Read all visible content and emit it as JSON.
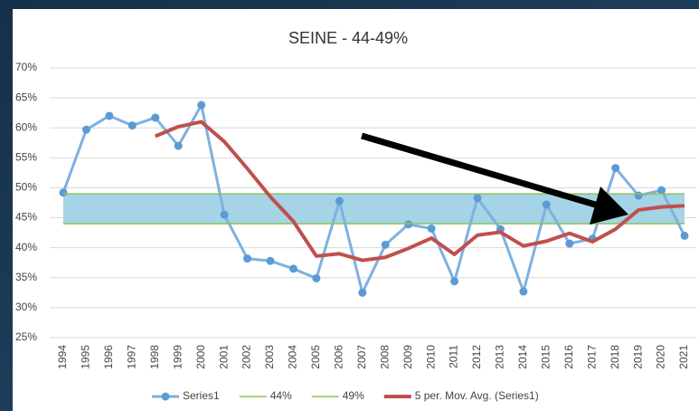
{
  "chart_data": {
    "type": "line",
    "title": "SEINE - 44-49%",
    "categories": [
      "1994",
      "1995",
      "1996",
      "1997",
      "1998",
      "1999",
      "2000",
      "2001",
      "2002",
      "2003",
      "2004",
      "2005",
      "2006",
      "2007",
      "2008",
      "2009",
      "2010",
      "2011",
      "2012",
      "2013",
      "2014",
      "2015",
      "2016",
      "2017",
      "2018",
      "2019",
      "2020",
      "2021"
    ],
    "series": [
      {
        "name": "Series1",
        "color": "#7fb0e0",
        "markers": true,
        "values": [
          49.2,
          59.7,
          62,
          60.4,
          61.7,
          57,
          63.8,
          45.5,
          38.2,
          37.8,
          36.5,
          34.9,
          47.8,
          32.5,
          40.5,
          43.9,
          43.2,
          34.4,
          48.3,
          43.1,
          32.7,
          47.2,
          40.7,
          41.5,
          53.3,
          48.7,
          49.6,
          42
        ]
      },
      {
        "name": "44%",
        "color": "#92c15a",
        "values": [
          44,
          44,
          44,
          44,
          44,
          44,
          44,
          44,
          44,
          44,
          44,
          44,
          44,
          44,
          44,
          44,
          44,
          44,
          44,
          44,
          44,
          44,
          44,
          44,
          44,
          44,
          44,
          44
        ]
      },
      {
        "name": "49%",
        "color": "#92c15a",
        "values": [
          49,
          49,
          49,
          49,
          49,
          49,
          49,
          49,
          49,
          49,
          49,
          49,
          49,
          49,
          49,
          49,
          49,
          49,
          49,
          49,
          49,
          49,
          49,
          49,
          49,
          49,
          49,
          49
        ]
      },
      {
        "name": "5 per. Mov. Avg. (Series1)",
        "color": "#c0504d",
        "values": [
          null,
          null,
          null,
          null,
          58.6,
          60.2,
          61.0,
          57.7,
          53.2,
          48.5,
          44.4,
          38.6,
          39.0,
          37.9,
          38.4,
          39.9,
          41.6,
          38.9,
          42.1,
          42.6,
          40.3,
          41.1,
          42.4,
          41.0,
          43.1,
          46.3,
          46.8,
          47.0
        ]
      }
    ],
    "band_color": "#a4d4e6",
    "ylim": [
      25,
      70
    ],
    "yticks": [
      {
        "value": 25,
        "label": "25%"
      },
      {
        "value": 30,
        "label": "30%"
      },
      {
        "value": 35,
        "label": "35%"
      },
      {
        "value": 40,
        "label": "40%"
      },
      {
        "value": 45,
        "label": "45%"
      },
      {
        "value": 50,
        "label": "50%"
      },
      {
        "value": 55,
        "label": "55%"
      },
      {
        "value": 60,
        "label": "60%"
      },
      {
        "value": 65,
        "label": "65%"
      },
      {
        "value": 70,
        "label": "70%"
      }
    ],
    "grid": true
  }
}
